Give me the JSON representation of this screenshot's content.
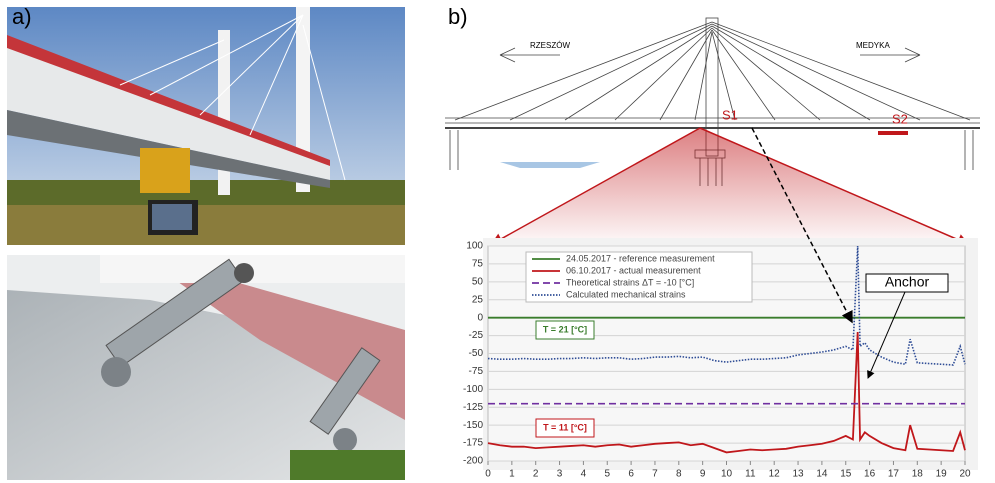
{
  "figure": {
    "panel_a": "a)",
    "panel_b": "b)",
    "left_city": "RZESZÓW",
    "right_city": "MEDYKA",
    "sensor_1": "S1",
    "sensor_2": "S2"
  },
  "chart_data": {
    "type": "line",
    "x": [
      0,
      0.5,
      1,
      1.5,
      2,
      2.5,
      3,
      3.5,
      4,
      4.5,
      5,
      5.5,
      6,
      6.5,
      7,
      7.5,
      8,
      8.5,
      9,
      9.5,
      10,
      10.5,
      11,
      11.5,
      12,
      12.5,
      13,
      13.5,
      14,
      14.5,
      15,
      15.3,
      15.5,
      15.6,
      15.8,
      16,
      16.5,
      17,
      17.5,
      17.7,
      18,
      18.5,
      19,
      19.5,
      19.8,
      20
    ],
    "series": [
      {
        "name": "24.05.2017 - reference measurement",
        "color": "#3a7d2c",
        "style": "solid",
        "values": [
          0,
          0,
          0,
          0,
          0,
          0,
          0,
          0,
          0,
          0,
          0,
          0,
          0,
          0,
          0,
          0,
          0,
          0,
          0,
          0,
          0,
          0,
          0,
          0,
          0,
          0,
          0,
          0,
          0,
          0,
          0,
          0,
          0,
          0,
          0,
          0,
          0,
          0,
          0,
          0,
          0,
          0,
          0,
          0,
          0,
          0
        ]
      },
      {
        "name": "06.10.2017 - actual measurement",
        "color": "#c0171b",
        "style": "solid",
        "values": [
          -175,
          -178,
          -180,
          -180,
          -182,
          -181,
          -180,
          -179,
          -178,
          -180,
          -178,
          -177,
          -180,
          -178,
          -176,
          -175,
          -174,
          -178,
          -176,
          -182,
          -188,
          -186,
          -184,
          -185,
          -184,
          -183,
          -180,
          -178,
          -176,
          -172,
          -165,
          -170,
          -20,
          -170,
          -160,
          -165,
          -175,
          -182,
          -185,
          -150,
          -183,
          -184,
          -185,
          -186,
          -160,
          -185
        ]
      },
      {
        "name": "Theoretical strains ΔT = -10 [°C]",
        "color": "#7030a0",
        "style": "dashed",
        "values": [
          -120,
          -120,
          -120,
          -120,
          -120,
          -120,
          -120,
          -120,
          -120,
          -120,
          -120,
          -120,
          -120,
          -120,
          -120,
          -120,
          -120,
          -120,
          -120,
          -120,
          -120,
          -120,
          -120,
          -120,
          -120,
          -120,
          -120,
          -120,
          -120,
          -120,
          -120,
          -120,
          -120,
          -120,
          -120,
          -120,
          -120,
          -120,
          -120,
          -120,
          -120,
          -120,
          -120,
          -120,
          -120,
          -120
        ]
      },
      {
        "name": "Calculated mechanical strains",
        "color": "#2f4d96",
        "style": "dotted",
        "values": [
          -57,
          -58,
          -58,
          -57,
          -58,
          -58,
          -57,
          -57,
          -56,
          -57,
          -56,
          -56,
          -58,
          -57,
          -55,
          -55,
          -54,
          -56,
          -55,
          -60,
          -62,
          -60,
          -58,
          -58,
          -57,
          -56,
          -52,
          -50,
          -48,
          -45,
          -40,
          -45,
          100,
          -40,
          -35,
          -45,
          -55,
          -62,
          -65,
          -30,
          -63,
          -64,
          -65,
          -66,
          -40,
          -65
        ]
      }
    ],
    "xlim": [
      0,
      20
    ],
    "xticks": [
      0,
      1,
      2,
      3,
      4,
      5,
      6,
      7,
      8,
      9,
      10,
      11,
      12,
      13,
      14,
      15,
      16,
      17,
      18,
      19,
      20
    ],
    "ylim": [
      -200,
      100
    ],
    "yticks": [
      -200,
      -175,
      -150,
      -125,
      -100,
      -75,
      -50,
      -25,
      0,
      25,
      50,
      75,
      100
    ],
    "grid": true,
    "legend": "upper left",
    "annotations": [
      {
        "text": "T = 21 [°C]",
        "color": "#3a7d2c"
      },
      {
        "text": "T = 11 [°C]",
        "color": "#c0171b"
      },
      {
        "text": "Anchor",
        "color": "#000000"
      }
    ]
  }
}
